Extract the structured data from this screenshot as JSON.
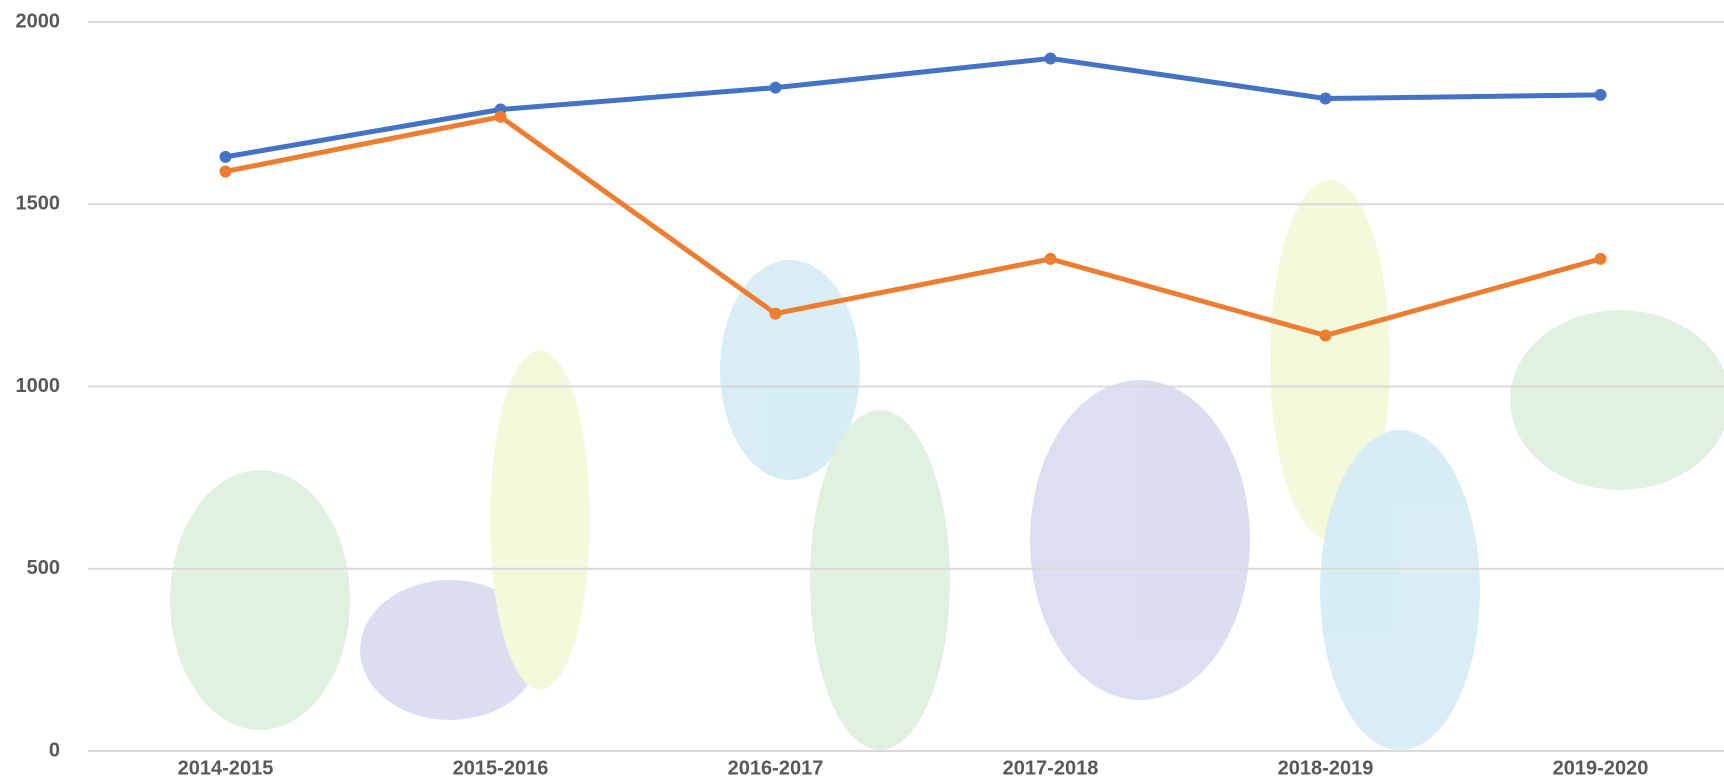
{
  "chart_data": {
    "type": "line",
    "categories": [
      "2014-2015",
      "2015-2016",
      "2016-2017",
      "2017-2018",
      "2018-2019",
      "2019-2020"
    ],
    "series": [
      {
        "color": "#4472c4",
        "values": [
          1630,
          1760,
          1820,
          1900,
          1790,
          1800
        ]
      },
      {
        "color": "#ed7d31",
        "values": [
          1590,
          1740,
          1200,
          1350,
          1140,
          1350
        ]
      }
    ],
    "ylim": [
      0,
      2000
    ],
    "yticks": [
      0,
      500,
      1000,
      1500,
      2000
    ],
    "grid": true
  }
}
